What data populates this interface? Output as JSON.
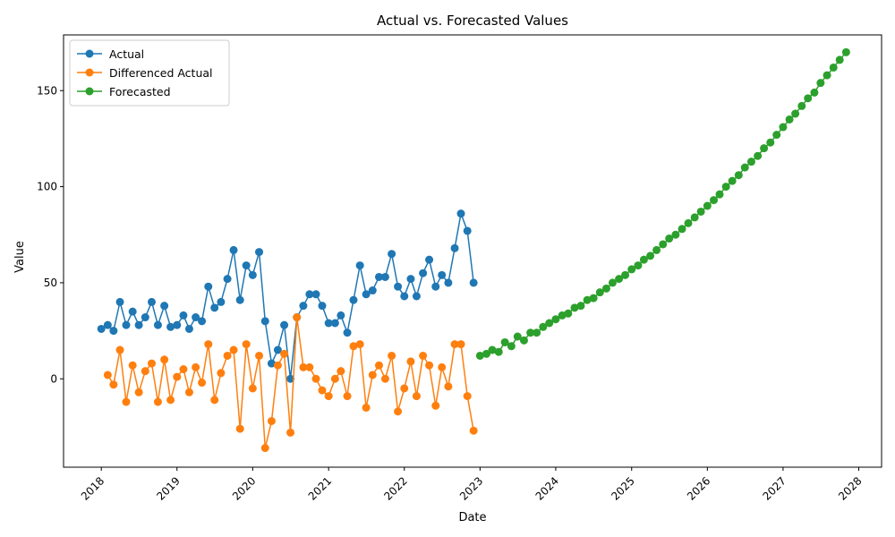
{
  "chart_data": {
    "type": "line",
    "title": "Actual vs. Forecasted Values",
    "xlabel": "Date",
    "ylabel": "Value",
    "xlim": [
      "2017-07-03",
      "2028-04-20"
    ],
    "ylim": [
      -46,
      179
    ],
    "x_ticks": [
      "2018",
      "2019",
      "2020",
      "2021",
      "2022",
      "2023",
      "2024",
      "2025",
      "2026",
      "2027",
      "2028"
    ],
    "y_ticks": [
      0,
      50,
      100,
      150
    ],
    "grid": false,
    "legend_position": "top-left",
    "series": [
      {
        "name": "Actual",
        "color": "#1f77b4",
        "x": [
          "2018-01",
          "2018-02",
          "2018-03",
          "2018-04",
          "2018-05",
          "2018-06",
          "2018-07",
          "2018-08",
          "2018-09",
          "2018-10",
          "2018-11",
          "2018-12",
          "2019-01",
          "2019-02",
          "2019-03",
          "2019-04",
          "2019-05",
          "2019-06",
          "2019-07",
          "2019-08",
          "2019-09",
          "2019-10",
          "2019-11",
          "2019-12",
          "2020-01",
          "2020-02",
          "2020-03",
          "2020-04",
          "2020-05",
          "2020-06",
          "2020-07",
          "2020-08",
          "2020-09",
          "2020-10",
          "2020-11",
          "2020-12",
          "2021-01",
          "2021-02",
          "2021-03",
          "2021-04",
          "2021-05",
          "2021-06",
          "2021-07",
          "2021-08",
          "2021-09",
          "2021-10",
          "2021-11",
          "2021-12",
          "2022-01",
          "2022-02",
          "2022-03",
          "2022-04",
          "2022-05",
          "2022-06",
          "2022-07",
          "2022-08",
          "2022-09",
          "2022-10",
          "2022-11",
          "2022-12"
        ],
        "values": [
          26,
          28,
          25,
          40,
          28,
          35,
          28,
          32,
          40,
          28,
          38,
          27,
          28,
          33,
          26,
          32,
          30,
          48,
          37,
          40,
          52,
          67,
          41,
          59,
          54,
          66,
          30,
          8,
          15,
          28,
          0,
          32,
          38,
          44,
          44,
          38,
          29,
          29,
          33,
          24,
          41,
          59,
          44,
          46,
          53,
          53,
          65,
          48,
          43,
          52,
          43,
          55,
          62,
          48,
          54,
          50,
          68,
          86,
          77,
          50
        ]
      },
      {
        "name": "Differenced Actual",
        "color": "#ff7f0e",
        "x": [
          "2018-02",
          "2018-03",
          "2018-04",
          "2018-05",
          "2018-06",
          "2018-07",
          "2018-08",
          "2018-09",
          "2018-10",
          "2018-11",
          "2018-12",
          "2019-01",
          "2019-02",
          "2019-03",
          "2019-04",
          "2019-05",
          "2019-06",
          "2019-07",
          "2019-08",
          "2019-09",
          "2019-10",
          "2019-11",
          "2019-12",
          "2020-01",
          "2020-02",
          "2020-03",
          "2020-04",
          "2020-05",
          "2020-06",
          "2020-07",
          "2020-08",
          "2020-09",
          "2020-10",
          "2020-11",
          "2020-12",
          "2021-01",
          "2021-02",
          "2021-03",
          "2021-04",
          "2021-05",
          "2021-06",
          "2021-07",
          "2021-08",
          "2021-09",
          "2021-10",
          "2021-11",
          "2021-12",
          "2022-01",
          "2022-02",
          "2022-03",
          "2022-04",
          "2022-05",
          "2022-06",
          "2022-07",
          "2022-08",
          "2022-09",
          "2022-10",
          "2022-11",
          "2022-12"
        ],
        "values": [
          2,
          -3,
          15,
          -12,
          7,
          -7,
          4,
          8,
          -12,
          10,
          -11,
          1,
          5,
          -7,
          6,
          -2,
          18,
          -11,
          3,
          12,
          15,
          -26,
          18,
          -5,
          12,
          -36,
          -22,
          7,
          13,
          -28,
          32,
          6,
          6,
          0,
          -6,
          -9,
          0,
          4,
          -9,
          17,
          18,
          -15,
          2,
          7,
          0,
          12,
          -17,
          -5,
          9,
          -9,
          12,
          7,
          -14,
          6,
          -4,
          18,
          18,
          -9,
          -27
        ]
      },
      {
        "name": "Forecasted",
        "color": "#2ca02c",
        "x": [
          "2023-01",
          "2023-02",
          "2023-03",
          "2023-04",
          "2023-05",
          "2023-06",
          "2023-07",
          "2023-08",
          "2023-09",
          "2023-10",
          "2023-11",
          "2023-12",
          "2024-01",
          "2024-02",
          "2024-03",
          "2024-04",
          "2024-05",
          "2024-06",
          "2024-07",
          "2024-08",
          "2024-09",
          "2024-10",
          "2024-11",
          "2024-12",
          "2025-01",
          "2025-02",
          "2025-03",
          "2025-04",
          "2025-05",
          "2025-06",
          "2025-07",
          "2025-08",
          "2025-09",
          "2025-10",
          "2025-11",
          "2025-12",
          "2026-01",
          "2026-02",
          "2026-03",
          "2026-04",
          "2026-05",
          "2026-06",
          "2026-07",
          "2026-08",
          "2026-09",
          "2026-10",
          "2026-11",
          "2026-12",
          "2027-01",
          "2027-02",
          "2027-03",
          "2027-04",
          "2027-05",
          "2027-06",
          "2027-07",
          "2027-08",
          "2027-09",
          "2027-10",
          "2027-11"
        ],
        "values": [
          12,
          13,
          15,
          14,
          19,
          17,
          22,
          20,
          24,
          24,
          27,
          29,
          31,
          33,
          34,
          37,
          38,
          41,
          42,
          45,
          47,
          50,
          52,
          54,
          57,
          59,
          62,
          64,
          67,
          70,
          73,
          75,
          78,
          81,
          84,
          87,
          90,
          93,
          96,
          100,
          103,
          106,
          110,
          113,
          116,
          120,
          123,
          127,
          131,
          135,
          138,
          142,
          146,
          149,
          154,
          158,
          162,
          166,
          170
        ]
      }
    ]
  }
}
